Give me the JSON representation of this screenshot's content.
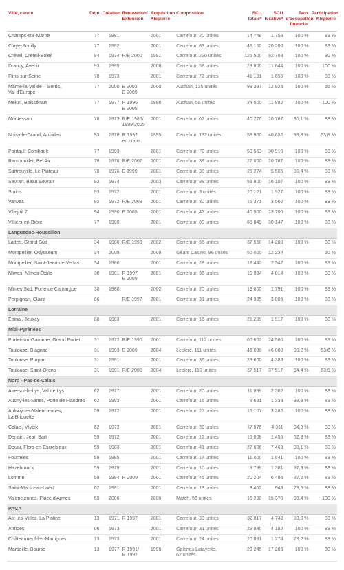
{
  "headers": {
    "ville": "Ville, centre",
    "dept": "Dépt",
    "creation": "Création",
    "renovation": "Rénovation/\nExtension",
    "acquisition": "Acquisition\nKlépierre",
    "composition": "Composition",
    "scu_totale": "SCU\ntotale*",
    "scu_locative": "SCU\nlocative*",
    "taux": "Taux\nd'occupation\nfinancier",
    "participation": "Participation\nKlépierre"
  },
  "rows": [
    {
      "type": "data",
      "ville": "Champs-sur-Marne",
      "dept": "77",
      "crea": "1981",
      "renov": "",
      "acq": "2001",
      "comp": "Carrefour, 20 unités",
      "scut": "14 748",
      "scul": "1 758",
      "taux": "100 %",
      "part": "83 %"
    },
    {
      "type": "data",
      "ville": "Claye-Souilly",
      "dept": "77",
      "crea": "1992",
      "renov": "",
      "acq": "2001",
      "comp": "Carrefour, 83 unités",
      "scut": "48 152",
      "scul": "20 200",
      "taux": "100 %",
      "part": "83 %"
    },
    {
      "type": "data",
      "ville": "Créteil, Créteil-Soleil",
      "dept": "94",
      "crea": "1974",
      "renov": "R/E 2000",
      "acq": "1991",
      "comp": "Carrefour, 220 unités",
      "scut": "125 500",
      "scul": "92 708",
      "taux": "100 %",
      "part": "80 %"
    },
    {
      "type": "data",
      "ville": "Drancy, Avenir",
      "dept": "93",
      "crea": "1995",
      "renov": "",
      "acq": "2008",
      "comp": "Carrefour, 58 unités",
      "scut": "28 805",
      "scul": "11 844",
      "taux": "100 %",
      "part": "100 %"
    },
    {
      "type": "data",
      "ville": "Flins-sur-Seine",
      "dept": "78",
      "crea": "1973",
      "renov": "",
      "acq": "2001",
      "comp": "Carrefour, 72 unités",
      "scut": "41 191",
      "scul": "1 656",
      "taux": "100 %",
      "part": "83 %"
    },
    {
      "type": "data",
      "ville": "Marne-la-Vallée – Serris,\nVal d'Europe",
      "dept": "77",
      "crea": "2000",
      "renov": "E 2003\nE 2009",
      "acq": "2000",
      "comp": "Auchan, 135 unités",
      "scut": "98 397",
      "scul": "72 826",
      "taux": "100 %",
      "part": "55 %"
    },
    {
      "type": "data",
      "ville": "Melun, Boissénart",
      "dept": "77",
      "crea": "1977",
      "renov": "R 1996\nE 2005",
      "acq": "1996",
      "comp": "Auchan, 55 unités",
      "scut": "34 500",
      "scul": "11 882",
      "taux": "100 %",
      "part": "100 %"
    },
    {
      "type": "data",
      "ville": "Montesson",
      "dept": "78",
      "crea": "1973",
      "renov": "R/E 1986/\n1999/2005",
      "acq": "2001",
      "comp": "Carrefour, 62 unités",
      "scut": "40 276",
      "scul": "10 787",
      "taux": "96,1 %",
      "part": "83 %"
    },
    {
      "type": "data",
      "ville": "Noisy-le-Grand, Arcades",
      "dept": "93",
      "crea": "1978",
      "renov": "R 1992\nen cours",
      "acq": "1995",
      "comp": "Carrefour, 132 unités",
      "scut": "58 900",
      "scul": "40 652",
      "taux": "99,8 %",
      "part": "53,8 %"
    },
    {
      "type": "data",
      "ville": "Pontault-Combault",
      "dept": "77",
      "crea": "1993",
      "renov": "",
      "acq": "2001",
      "comp": "Carrefour, 70 unités",
      "scut": "53 563",
      "scul": "30 910",
      "taux": "100 %",
      "part": "83 %"
    },
    {
      "type": "data",
      "ville": "Rambouillet, Bel Air",
      "dept": "78",
      "crea": "1976",
      "renov": "R/E 2007",
      "acq": "2001",
      "comp": "Carrefour, 38 unités",
      "scut": "27 000",
      "scul": "10 787",
      "taux": "100 %",
      "part": "83 %"
    },
    {
      "type": "data",
      "ville": "Sartrouville, Le Plateau",
      "dept": "78",
      "crea": "1976",
      "renov": "E 1999",
      "acq": "2001",
      "comp": "Carrefour, 38 unités",
      "scut": "25 274",
      "scul": "5 506",
      "taux": "90,4 %",
      "part": "83 %"
    },
    {
      "type": "data",
      "ville": "Sevran, Beau Sevran",
      "dept": "93",
      "crea": "1974",
      "renov": "",
      "acq": "2003",
      "comp": "Carrefour, 98 unités",
      "scut": "53 800",
      "scul": "16 107",
      "taux": "100 %",
      "part": "83 %"
    },
    {
      "type": "data",
      "ville": "Stains",
      "dept": "93",
      "crea": "1972",
      "renov": "",
      "acq": "2001",
      "comp": "Carrefour, 3 unités",
      "scut": "20 121",
      "scul": "1 927",
      "taux": "100 %",
      "part": "83 %"
    },
    {
      "type": "data",
      "ville": "Vanves",
      "dept": "92",
      "crea": "1972",
      "renov": "R/E 2008",
      "acq": "2001",
      "comp": "Carrefour, 30 unités",
      "scut": "15 371",
      "scul": "3 502",
      "taux": "100 %",
      "part": "83 %"
    },
    {
      "type": "data",
      "ville": "Villejuif 7",
      "dept": "94",
      "crea": "1990",
      "renov": "E 2005",
      "acq": "2001",
      "comp": "Carrefour, 47 unités",
      "scut": "40 500",
      "scul": "13 700",
      "taux": "100 %",
      "part": "83 %"
    },
    {
      "type": "data",
      "ville": "Villiers-en-Bière",
      "dept": "77",
      "crea": "1980",
      "renov": "",
      "acq": "2001",
      "comp": "Carrefour, 80 unités",
      "scut": "65 849",
      "scul": "30 147",
      "taux": "100 %",
      "part": "83 %"
    },
    {
      "type": "region",
      "label": "Languedoc-Roussillon"
    },
    {
      "type": "data",
      "ville": "Lattes, Grand Sud",
      "dept": "34",
      "crea": "1986",
      "renov": "R/E 1993",
      "acq": "2002",
      "comp": "Carrefour, 66 unités",
      "scut": "37 650",
      "scul": "14 280",
      "taux": "100 %",
      "part": "83 %"
    },
    {
      "type": "data",
      "ville": "Montpellier, Odysseum",
      "dept": "34",
      "crea": "2009",
      "renov": "",
      "acq": "2009",
      "comp": "Géant Casino, 96 unités",
      "scut": "50 000",
      "scul": "12 234",
      "taux": "",
      "part": "50 %"
    },
    {
      "type": "data",
      "ville": "Montpellier, Saint-Jean-de-Vedas",
      "dept": "34",
      "crea": "1986",
      "renov": "",
      "acq": "2001",
      "comp": "Carrefour, 28 unités",
      "scut": "18 442",
      "scul": "2 347",
      "taux": "100 %",
      "part": "83 %"
    },
    {
      "type": "data",
      "ville": "Nîmes, Nîmes Étoile",
      "dept": "30",
      "crea": "1981",
      "renov": "R 1997\nE 2009",
      "acq": "2001",
      "comp": "Carrefour, 36 unités",
      "scut": "19 834",
      "scul": "4 814",
      "taux": "100 %",
      "part": "83 %"
    },
    {
      "type": "data",
      "ville": "Nîmes Sud, Porte de Camargue",
      "dept": "30",
      "crea": "1980",
      "renov": "",
      "acq": "2002",
      "comp": "Carrefour, 20 unités",
      "scut": "19 605",
      "scul": "1 791",
      "taux": "100 %",
      "part": "83 %"
    },
    {
      "type": "data",
      "ville": "Perpignan, Claira",
      "dept": "66",
      "crea": "",
      "renov": "R/E 1997",
      "acq": "2001",
      "comp": "Carrefour, 31 unités",
      "scut": "24 985",
      "scul": "3 006",
      "taux": "100 %",
      "part": "83 %"
    },
    {
      "type": "region",
      "label": "Lorraine"
    },
    {
      "type": "data",
      "ville": "Épinal, Jeuxey",
      "dept": "88",
      "crea": "1983",
      "renov": "",
      "acq": "2001",
      "comp": "Carrefour, 16 unités",
      "scut": "21 209",
      "scul": "1 917",
      "taux": "100 %",
      "part": "83 %"
    },
    {
      "type": "region",
      "label": "Midi-Pyrénées"
    },
    {
      "type": "data",
      "ville": "Portet-sur-Garonne, Grand Portet",
      "dept": "31",
      "crea": "1972",
      "renov": "R/E 1990",
      "acq": "2001",
      "comp": "Carrefour, 112 unités",
      "scut": "60 602",
      "scul": "24 580",
      "taux": "100 %",
      "part": "83 %"
    },
    {
      "type": "data",
      "ville": "Toulouse, Blagnac",
      "dept": "31",
      "crea": "1993",
      "renov": "E 2009",
      "acq": "2004",
      "comp": "Leclerc, 111 unités",
      "scut": "46 080",
      "scul": "46 080",
      "taux": "99,2 %",
      "part": "53,6 %"
    },
    {
      "type": "data",
      "ville": "Toulouse, Purpan",
      "dept": "31",
      "crea": "1991",
      "renov": "",
      "acq": "2001",
      "comp": "Carrefour, 36 unités",
      "scut": "23 600",
      "scul": "4 383",
      "taux": "100 %",
      "part": "83 %"
    },
    {
      "type": "data",
      "ville": "Toulouse, Saint-Orens",
      "dept": "31",
      "crea": "1991",
      "renov": "R/E 2008",
      "acq": "2004",
      "comp": "Leclerc, 110 unités",
      "scut": "37 517",
      "scul": "37 517",
      "taux": "94,4 %",
      "part": "53,6 %"
    },
    {
      "type": "region",
      "label": "Nord - Pas-de-Calais"
    },
    {
      "type": "data",
      "ville": "Aire-sur-la-Lys, Val de Lys",
      "dept": "62",
      "crea": "1977",
      "renov": "",
      "acq": "2001",
      "comp": "Carrefour, 20 unités",
      "scut": "11 899",
      "scul": "2 362",
      "taux": "100 %",
      "part": "83 %"
    },
    {
      "type": "data",
      "ville": "Auchy-les-Mines, Porte de Flandres",
      "dept": "62",
      "crea": "1993",
      "renov": "",
      "acq": "2001",
      "comp": "Carrefour, 16 unités",
      "scut": "8 681",
      "scul": "1 333",
      "taux": "98,9 %",
      "part": "83 %"
    },
    {
      "type": "data",
      "ville": "Aulnoy-les-Valenciennes,\nLa Briquette",
      "dept": "59",
      "crea": "1972",
      "renov": "",
      "acq": "2001",
      "comp": "Carrefour, 27 unités",
      "scut": "15 107",
      "scul": "3 262",
      "taux": "100 %",
      "part": "83 %"
    },
    {
      "type": "data",
      "ville": "Calais, Mivoix",
      "dept": "62",
      "crea": "1973",
      "renov": "",
      "acq": "2001",
      "comp": "Carrefour, 20 unités",
      "scut": "17 576",
      "scul": "4 311",
      "taux": "94,3 %",
      "part": "83 %"
    },
    {
      "type": "data",
      "ville": "Denain, Jean Bart",
      "dept": "59",
      "crea": "1972",
      "renov": "",
      "acq": "2001",
      "comp": "Carrefour, 12 unités",
      "scut": "15 008",
      "scul": "1 456",
      "taux": "62,3 %",
      "part": "83 %"
    },
    {
      "type": "data",
      "ville": "Douai, Flers-en-Escrebieux",
      "dept": "59",
      "crea": "1983",
      "renov": "",
      "acq": "2001",
      "comp": "Carrefour, 41 unités",
      "scut": "27 606",
      "scul": "7 463",
      "taux": "98,1 %",
      "part": "83 %"
    },
    {
      "type": "data",
      "ville": "Fourmies",
      "dept": "59",
      "crea": "1985",
      "renov": "",
      "acq": "2001",
      "comp": "Carrefour, 17 unités",
      "scut": "11 000",
      "scul": "1 841",
      "taux": "100 %",
      "part": "83 %"
    },
    {
      "type": "data",
      "ville": "Hazebrouck",
      "dept": "59",
      "crea": "1979",
      "renov": "",
      "acq": "2001",
      "comp": "Carrefour, 10 unités",
      "scut": "8 789",
      "scul": "1 381",
      "taux": "97,3 %",
      "part": "83 %"
    },
    {
      "type": "data",
      "ville": "Lomme",
      "dept": "59",
      "crea": "1984",
      "renov": "R 2009",
      "acq": "2001",
      "comp": "Carrefour, 45 unités",
      "scut": "20 204",
      "scul": "6 486",
      "taux": "87,2 %",
      "part": "83 %"
    },
    {
      "type": "data",
      "ville": "Saint-Martin-au-Laërt",
      "dept": "62",
      "crea": "1991",
      "renov": "",
      "acq": "2001",
      "comp": "Carrefour, 13 unités",
      "scut": "8 452",
      "scul": "943",
      "taux": "78,5 %",
      "part": "83 %"
    },
    {
      "type": "data",
      "ville": "Valenciennes, Place d'Armes",
      "dept": "59",
      "crea": "2006",
      "renov": "",
      "acq": "2006",
      "comp": "Match, 56 unités",
      "scut": "16 290",
      "scul": "15 370",
      "taux": "93,4 %",
      "part": "100 %"
    },
    {
      "type": "region",
      "label": "PACA"
    },
    {
      "type": "data",
      "ville": "Aix-les-Milles, La Pioline",
      "dept": "13",
      "crea": "1971",
      "renov": "R 1997",
      "acq": "2001",
      "comp": "Carrefour, 33 unités",
      "scut": "32 817",
      "scul": "4 743",
      "taux": "99,9 %",
      "part": "83 %"
    },
    {
      "type": "data",
      "ville": "Antibes",
      "dept": "06",
      "crea": "1973",
      "renov": "",
      "acq": "2001",
      "comp": "Carrefour, 31 unités",
      "scut": "29 880",
      "scul": "4 182",
      "taux": "100 %",
      "part": "83 %"
    },
    {
      "type": "data",
      "ville": "Châteauneuf-les-Martigues",
      "dept": "13",
      "crea": "1973",
      "renov": "",
      "acq": "2001",
      "comp": "Carrefour, 24 unités",
      "scut": "20 831",
      "scul": "1 274",
      "taux": "78,2 %",
      "part": "83 %"
    },
    {
      "type": "data",
      "ville": "Marseille, Bourse",
      "dept": "13",
      "crea": "1977",
      "renov": "R 1991/\nR 1997",
      "acq": "1996",
      "comp": "Galeries Lafayette,\n62 unités",
      "scut": "29 245",
      "scul": "17 289",
      "taux": "100 %",
      "part": "50 %"
    }
  ],
  "style": {
    "header_color": "#a9302e",
    "text_color": "#6b6b6b",
    "region_bg": "#e9e7e5",
    "border_color": "#e5e5e5"
  }
}
